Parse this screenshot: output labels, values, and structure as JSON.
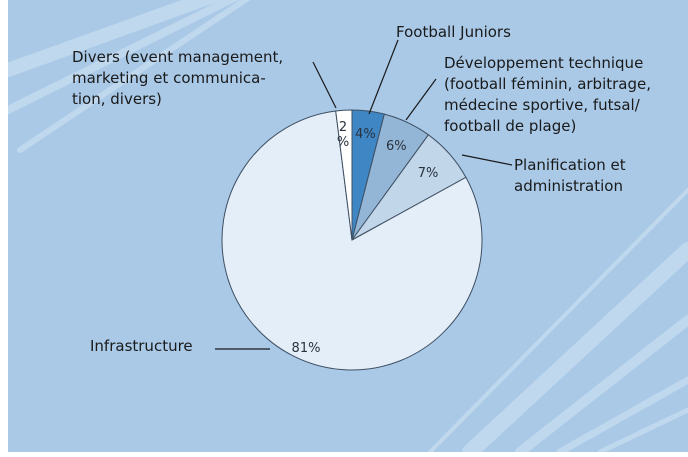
{
  "chart_data": {
    "type": "pie",
    "title": "",
    "slices": [
      {
        "label": "Football Juniors",
        "value": 4,
        "value_label": "4%",
        "color": "#3f86c4"
      },
      {
        "label": "Développement technique\n(football féminin, arbitrage,\nmédecine sportive, futsal/\nfootball de plage)",
        "value": 6,
        "value_label": "6%",
        "color": "#93b5d6"
      },
      {
        "label": "Planification et\nadministration",
        "value": 7,
        "value_label": "7%",
        "color": "#c2d6ea"
      },
      {
        "label": "Infrastructure",
        "value": 81,
        "value_label": "81%",
        "color": "#e4eef8"
      },
      {
        "label": "Divers (event management,\nmarketing et communica-\ntion, divers)",
        "value": 2,
        "value_label": "2\n%",
        "color": "#ffffff"
      }
    ]
  },
  "colors": {
    "background": "#a9c9e7",
    "stripes": "#c3dbf0",
    "outline": "#3e4f62"
  }
}
